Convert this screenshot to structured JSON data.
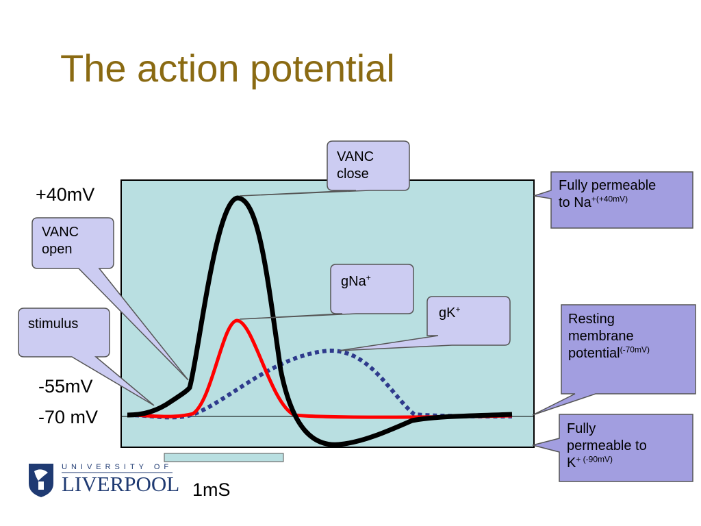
{
  "slide": {
    "title": "The action potential",
    "y_labels": {
      "plus40": "+40mV",
      "minus55": "-55mV",
      "minus70": "-70 mV"
    },
    "scale": "1mS",
    "logo": {
      "top": "UNIVERSITY OF",
      "main": "LIVERPOOL"
    }
  },
  "callouts": {
    "vanc_close": {
      "line1": "VANC",
      "line2": "close"
    },
    "vanc_open": {
      "line1": "VANC",
      "line2": "open"
    },
    "stimulus": "stimulus",
    "gna": {
      "main": "gNa",
      "sup": "+"
    },
    "gk": {
      "main": "gK",
      "sup": "+"
    }
  },
  "info_boxes": {
    "na": {
      "line1": "Fully permeable",
      "line2_main": "to Na",
      "line2_sup": "+(+40mV)"
    },
    "resting": {
      "line1": "Resting",
      "line2": "membrane",
      "line3_main": "potential",
      "line3_sup": "(-70mV)"
    },
    "k": {
      "line1": "Fully",
      "line2": "permeable to",
      "line3_main": "K",
      "line3_sup": "+ (-90mV)"
    }
  },
  "colors": {
    "title": "#8a6a12",
    "plot_bg": "#b9dfe1",
    "membrane_potential": "#000000",
    "gNa": "#ff0000",
    "gK": "#2e3a8c",
    "callout_fill": "#ccccf2",
    "info_fill": "#a29ee0"
  }
}
